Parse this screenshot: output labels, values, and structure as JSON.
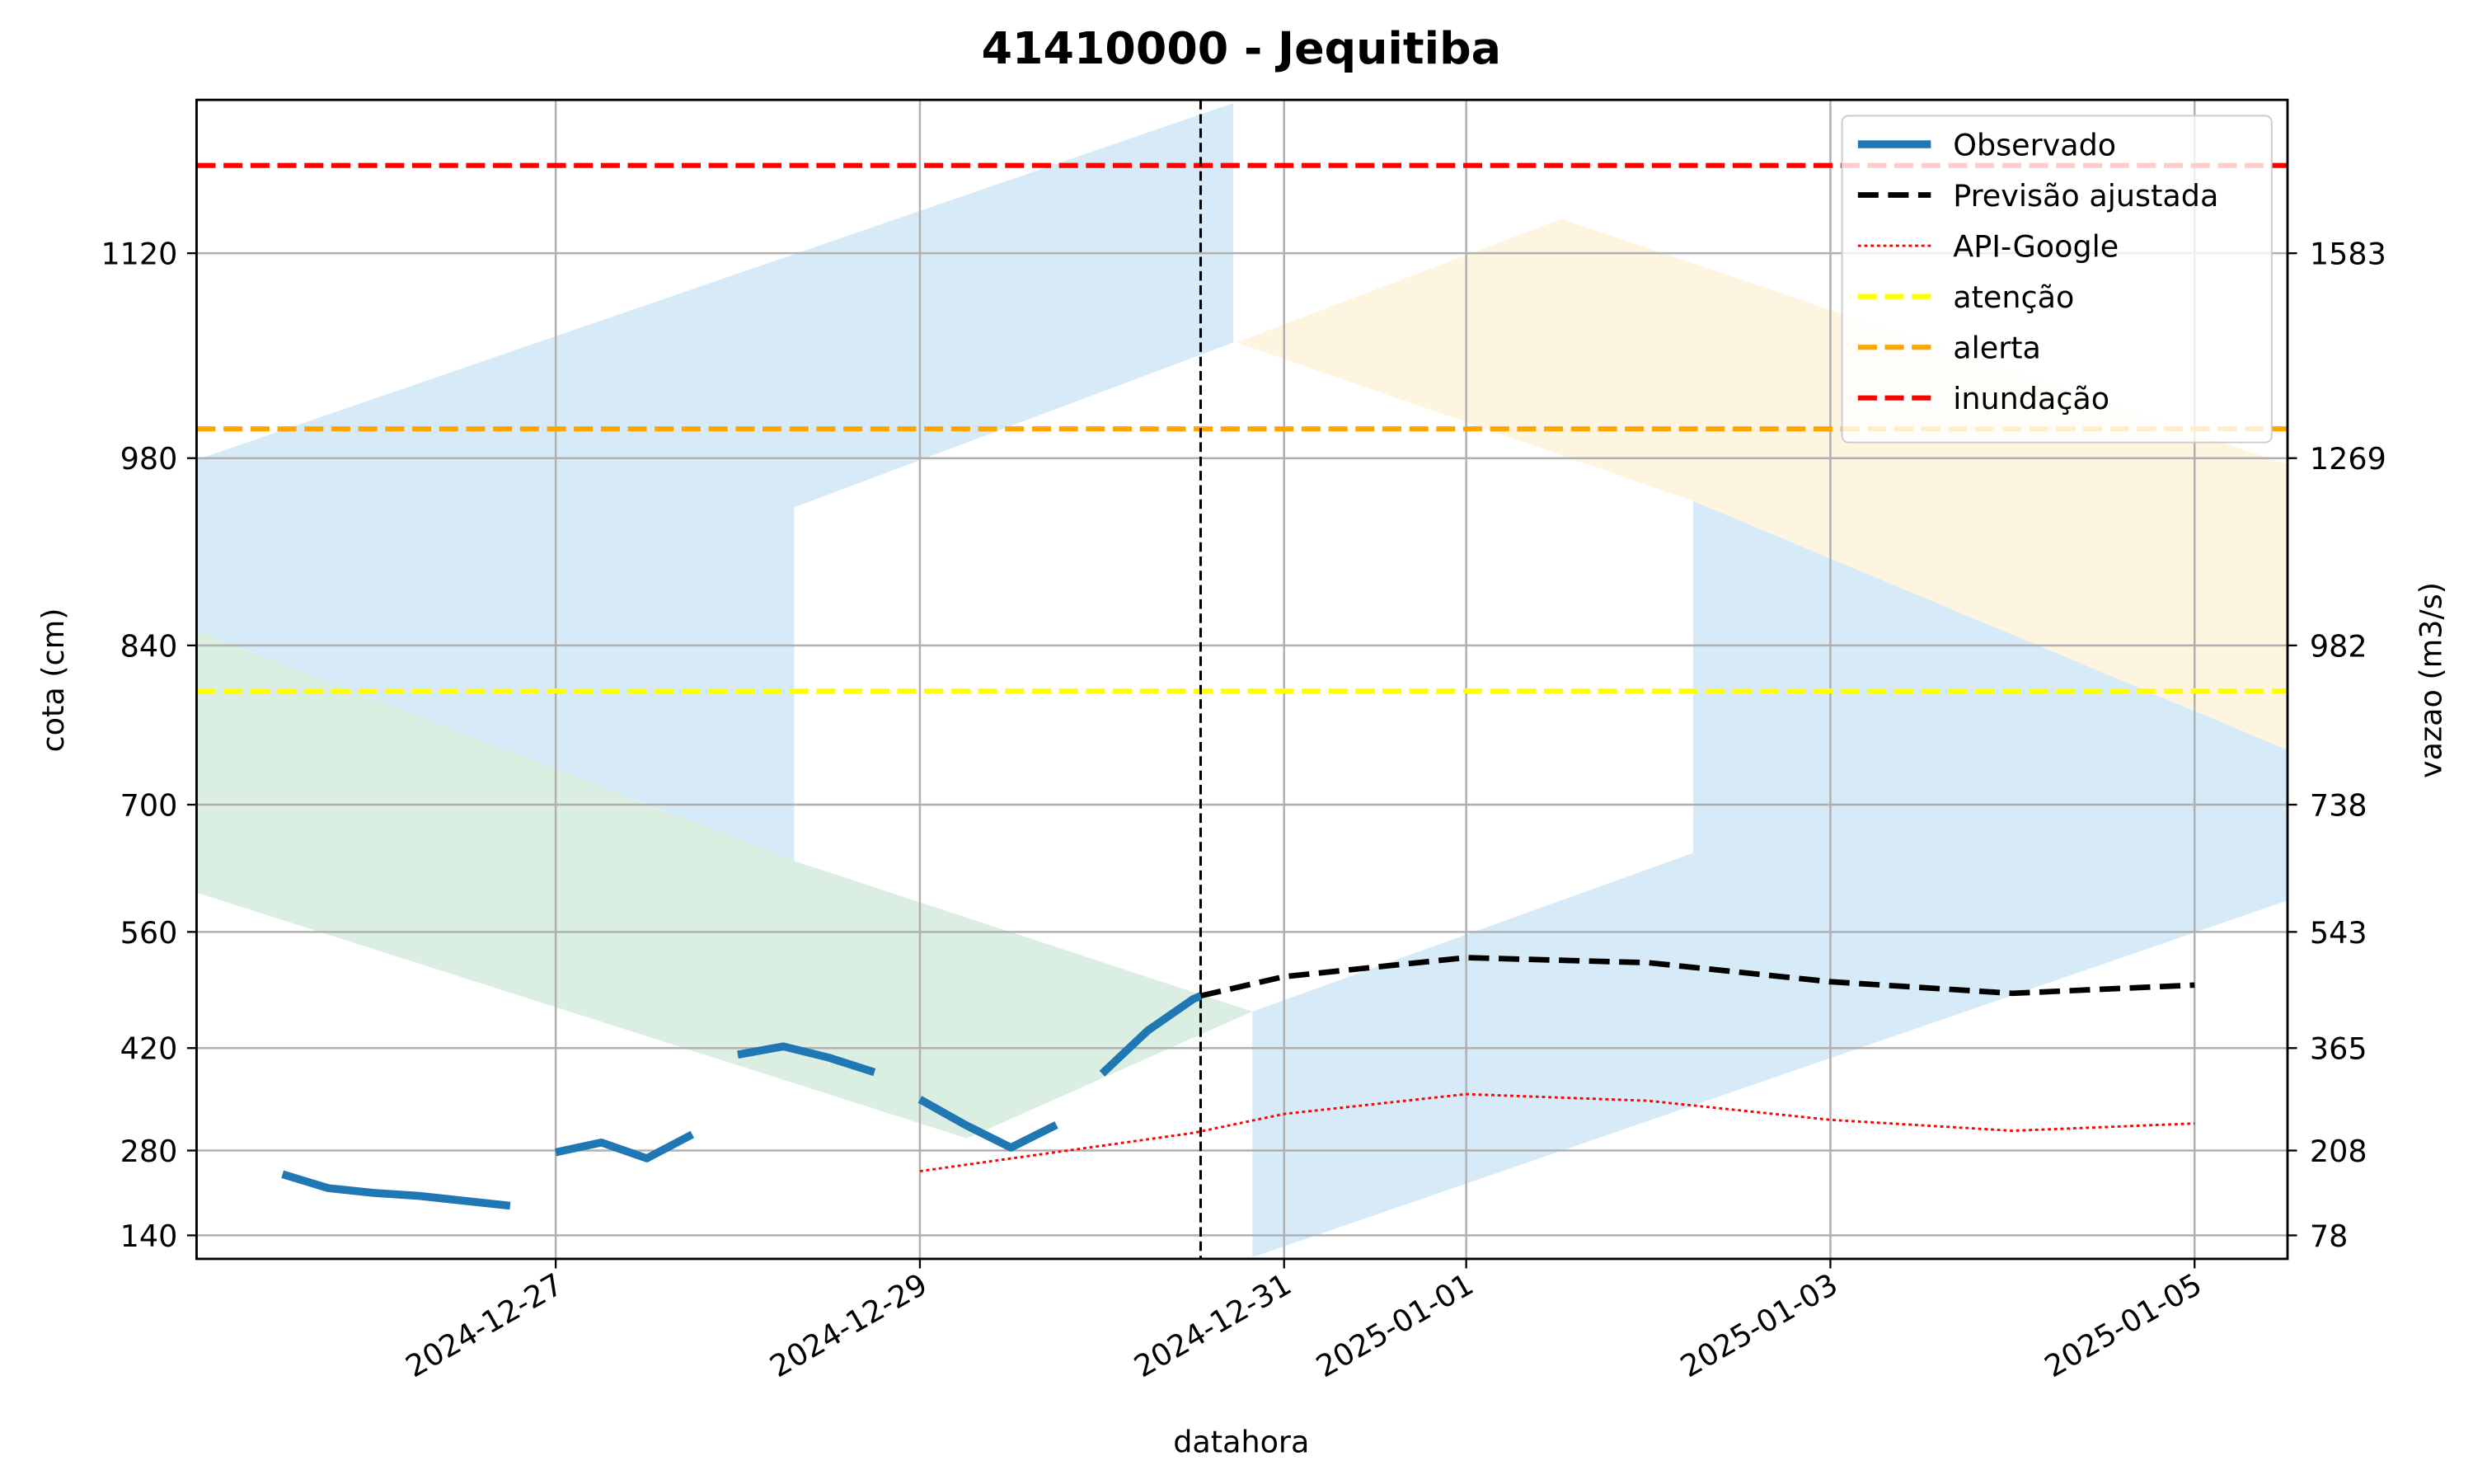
{
  "chart_data": {
    "type": "line",
    "title": "41410000 - Jequitiba",
    "xlabel": "datahora",
    "ylabel": "cota (cm)",
    "y2label": "vazao (m3/s)",
    "xlim": [
      "2024-12-25T00:40",
      "2025-01-05T12:15"
    ],
    "xticks": [
      "2024-12-27",
      "2024-12-29",
      "2024-12-31",
      "2025-01-01",
      "2025-01-03",
      "2025-01-05"
    ],
    "yticks": [
      140,
      280,
      420,
      560,
      700,
      840,
      980,
      1120
    ],
    "y2lim": [
      42,
      1818
    ],
    "y2ticks": [
      78,
      208,
      365,
      543,
      738,
      982,
      1269,
      1583
    ],
    "grid": true,
    "legend": "upper right",
    "now_line": "2024-12-30T13:00",
    "series": [
      {
        "name": "Observado",
        "color": "#1f77b4",
        "style": "solid-thick",
        "x": [
          "2024-12-25T12:00",
          "2024-12-25T18:00",
          "2024-12-26T00:00",
          "2024-12-26T06:00",
          "2024-12-26T12:00",
          "2024-12-26T18:00",
          "2024-12-26T21:00",
          "2024-12-27T00:00",
          "2024-12-27T06:00",
          "2024-12-27T12:00",
          "2024-12-27T18:00",
          "2024-12-27T21:00",
          "2024-12-28T00:00",
          "2024-12-28T06:00",
          "2024-12-28T12:00",
          "2024-12-28T18:00",
          "2024-12-28T21:00",
          "2024-12-29T00:00",
          "2024-12-29T06:00",
          "2024-12-29T12:00",
          "2024-12-29T18:00",
          "2024-12-29T21:00",
          "2024-12-30T00:00",
          "2024-12-30T06:00",
          "2024-12-30T12:00",
          "2024-12-30T13:00"
        ],
        "values": [
          241,
          218,
          210,
          205,
          197,
          189,
          null,
          277,
          291,
          267,
          302,
          null,
          411,
          422,
          407,
          387,
          null,
          350,
          315,
          284,
          315,
          null,
          385,
          441,
          479,
          483
        ]
      },
      {
        "name": "Previsão ajustada",
        "color": "#000000",
        "style": "dashed",
        "x": [
          "2024-12-30T13:00",
          "2024-12-31T00:00",
          "2025-01-01T00:00",
          "2025-01-02T00:00",
          "2025-01-03T00:00",
          "2025-01-04T00:00",
          "2025-01-05T00:00"
        ],
        "values": [
          483,
          506,
          529,
          523,
          500,
          486,
          496
        ]
      },
      {
        "name": "API-Google",
        "color": "#ff0000",
        "style": "dotted",
        "x": [
          "2024-12-29T00:00",
          "2024-12-30T12:00",
          "2024-12-31T00:00",
          "2025-01-01T00:00",
          "2025-01-02T00:00",
          "2025-01-03T00:00",
          "2025-01-04T00:00",
          "2025-01-05T00:00"
        ],
        "values": [
          246,
          304,
          330,
          357,
          348,
          322,
          307,
          317
        ]
      }
    ],
    "thresholds": [
      {
        "name": "atenção",
        "color": "#ffff00",
        "value": 800
      },
      {
        "name": "alerta",
        "color": "#ffa500",
        "value": 1000
      },
      {
        "name": "inundação",
        "color": "#ff0000",
        "value": 1180
      }
    ]
  }
}
